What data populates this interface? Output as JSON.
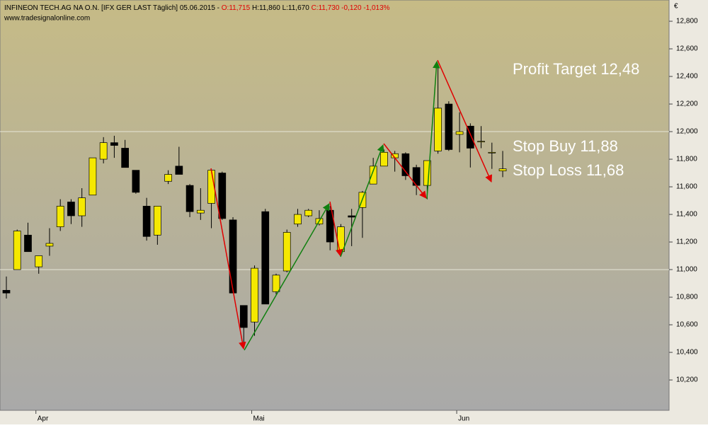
{
  "chart_data": {
    "type": "candlestick",
    "header": {
      "symbol": "INFINEON TECH.AG NA O.N. [IFX GER LAST Täglich] 05.06.2015 -",
      "open": "O:11,715",
      "high_low": "H:11,860 L:11,670",
      "close": "C:11,730 -0,120 -1,013%"
    },
    "watermark": "www.tradesignalonline.com",
    "currency": "€",
    "annotations": [
      "Profit Target 12,48",
      "Stop Buy 11,88",
      "Stop Loss 11,68"
    ],
    "up_color": "#f5e800",
    "down_color": "#000000",
    "categories": [
      null,
      null,
      null,
      "Apr",
      null,
      null,
      null,
      null,
      null,
      null,
      null,
      null,
      null,
      null,
      null,
      null,
      null,
      null,
      null,
      null,
      null,
      null,
      null,
      "Mai",
      null,
      null,
      null,
      null,
      null,
      null,
      null,
      null,
      null,
      null,
      null,
      null,
      null,
      null,
      null,
      null,
      null,
      null,
      "Jun",
      null,
      null,
      null,
      null
    ],
    "open": [
      10850,
      11000,
      11250,
      11020,
      11170,
      11310,
      11490,
      11390,
      11540,
      11800,
      11920,
      11880,
      11720,
      11460,
      11250,
      11640,
      11750,
      11610,
      11410,
      11480,
      11700,
      11360,
      10740,
      10620,
      11420,
      10840,
      10990,
      11330,
      11390,
      11330,
      11430,
      11130,
      11390,
      11450,
      11620,
      11750,
      11810,
      11840,
      11740,
      11610,
      11860,
      12200,
      11980,
      12040,
      11930,
      11850,
      11715
    ],
    "high": [
      10950,
      11290,
      11340,
      11100,
      11300,
      11510,
      11510,
      11590,
      11810,
      11960,
      11970,
      11940,
      11720,
      11520,
      11460,
      11720,
      11890,
      11620,
      11590,
      11730,
      11710,
      11380,
      10740,
      11030,
      11440,
      10970,
      11290,
      11440,
      11440,
      11430,
      11460,
      11330,
      11440,
      11570,
      11810,
      11870,
      11860,
      11850,
      11760,
      11790,
      12490,
      12220,
      12140,
      12060,
      12040,
      11920,
      11860
    ],
    "low": [
      10790,
      11000,
      11130,
      10970,
      11100,
      11280,
      11330,
      11310,
      11540,
      11770,
      11810,
      11740,
      11550,
      11210,
      11180,
      11620,
      11690,
      11380,
      11360,
      11300,
      11360,
      10830,
      10440,
      10520,
      10750,
      10820,
      10980,
      11310,
      11380,
      11320,
      11140,
      11120,
      11170,
      11230,
      11620,
      11750,
      11710,
      11650,
      11540,
      11510,
      11840,
      11860,
      11850,
      11740,
      11880,
      11730,
      11670
    ],
    "close": [
      10830,
      11280,
      11130,
      11100,
      11190,
      11460,
      11390,
      11520,
      11810,
      11920,
      11900,
      11740,
      11560,
      11240,
      11460,
      11690,
      11690,
      11420,
      11430,
      11720,
      11370,
      10830,
      10580,
      11010,
      10750,
      10960,
      11270,
      11400,
      11430,
      11370,
      11200,
      11310,
      11380,
      11560,
      11750,
      11850,
      11840,
      11680,
      11610,
      11790,
      12170,
      11870,
      12000,
      11880,
      11930,
      11850,
      11730
    ],
    "ylim": [
      9980,
      12954
    ],
    "yticks": [
      {
        "value": 10200,
        "label": "10,200"
      },
      {
        "value": 10400,
        "label": "10,400"
      },
      {
        "value": 10600,
        "label": "10,600"
      },
      {
        "value": 10800,
        "label": "10,800"
      },
      {
        "value": 11000,
        "label": "11,000"
      },
      {
        "value": 11200,
        "label": "11,200"
      },
      {
        "value": 11400,
        "label": "11,400"
      },
      {
        "value": 11600,
        "label": "11,600"
      },
      {
        "value": 11800,
        "label": "11,800"
      },
      {
        "value": 12000,
        "label": "12,000"
      },
      {
        "value": 12200,
        "label": "12,200"
      },
      {
        "value": 12400,
        "label": "12,400"
      },
      {
        "value": 12600,
        "label": "12,600"
      },
      {
        "value": 12800,
        "label": "12,800"
      }
    ]
  }
}
